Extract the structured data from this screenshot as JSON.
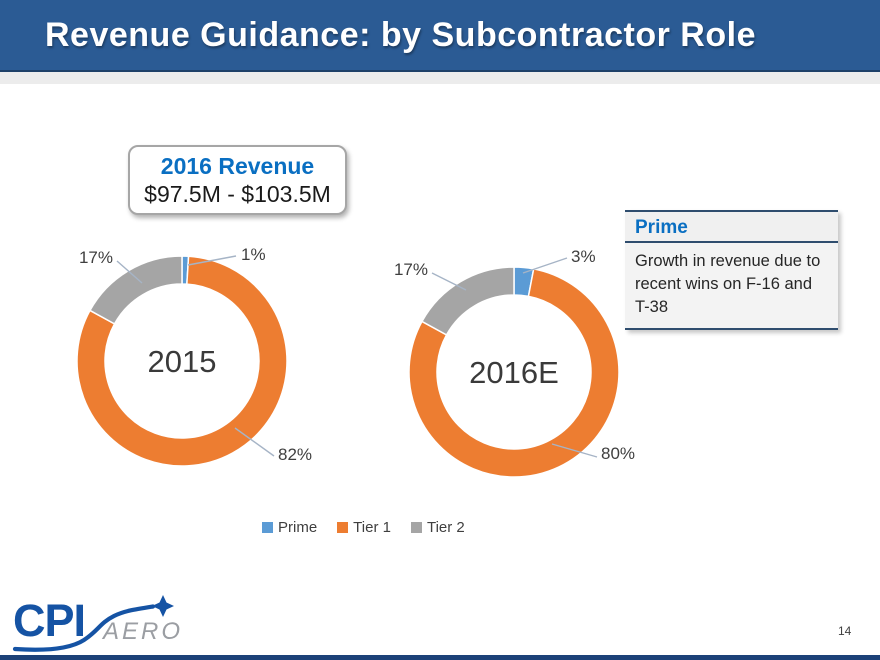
{
  "slide": {
    "title": "Revenue Guidance: by Subcontractor Role",
    "page_number": "14"
  },
  "callout": {
    "title": "2016 Revenue",
    "range": "$97.5M - $103.5M"
  },
  "note_box": {
    "header": "Prime",
    "body": "Growth in revenue due to recent wins on F-16 and T-38"
  },
  "legend": [
    {
      "label": "Prime",
      "color": "#5B9BD5"
    },
    {
      "label": "Tier 1",
      "color": "#ED7D31"
    },
    {
      "label": "Tier 2",
      "color": "#A5A5A5"
    }
  ],
  "logo": {
    "brand": "CPI",
    "sub": "AERO"
  },
  "colors": {
    "header_bar": "#2B5B94",
    "header_strip": "#ECECEC",
    "title_text": "#FFFFFF",
    "accent_blue": "#0A6FC2",
    "prime_blue": "#5B9BD5",
    "tier1_orange": "#ED7D31",
    "tier2_gray": "#A5A5A5",
    "note_border": "#2F4D6E",
    "leader_line": "#A6B4C6",
    "logo_blue": "#1553A4",
    "logo_gray": "#9B9EA3",
    "text_dark": "#3F3F3F",
    "bottom_bar": "#1C4178"
  },
  "chart_data": [
    {
      "type": "pie",
      "subtype": "donut",
      "title": "2015",
      "center_label": "2015",
      "categories": [
        "Prime",
        "Tier 1",
        "Tier 2"
      ],
      "values": [
        1,
        82,
        17
      ],
      "unit": "%",
      "colors": [
        "#5B9BD5",
        "#ED7D31",
        "#A5A5A5"
      ],
      "legend_position": "bottom"
    },
    {
      "type": "pie",
      "subtype": "donut",
      "title": "2016E",
      "center_label": "2016E",
      "categories": [
        "Prime",
        "Tier 1",
        "Tier 2"
      ],
      "values": [
        3,
        80,
        17
      ],
      "unit": "%",
      "colors": [
        "#5B9BD5",
        "#ED7D31",
        "#A5A5A5"
      ],
      "legend_position": "bottom"
    }
  ]
}
